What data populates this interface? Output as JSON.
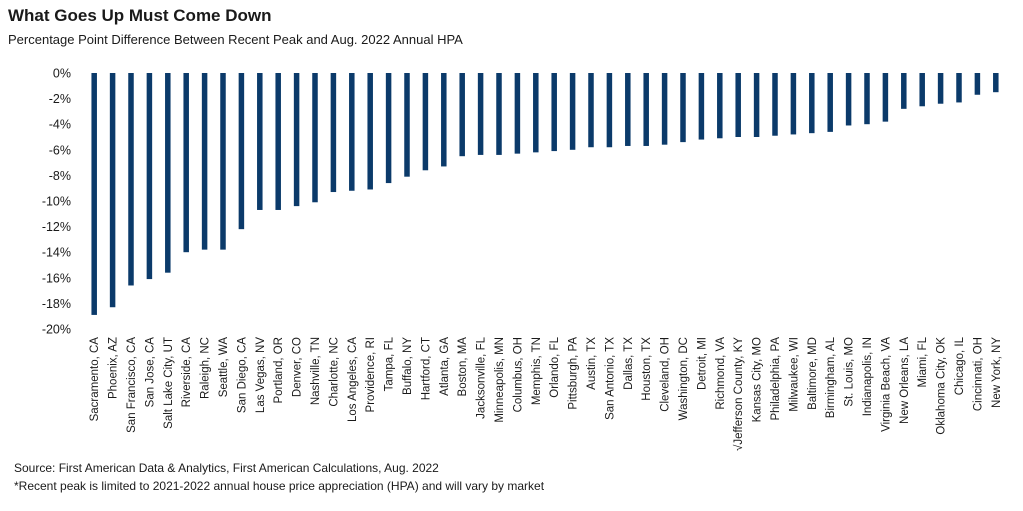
{
  "header": {
    "title": "What Goes Up Must Come Down",
    "subtitle": "Percentage Point Difference Between Recent Peak and Aug. 2022 Annual HPA"
  },
  "footer": {
    "source": "Source: First American Data & Analytics, First American Calculations, Aug. 2022",
    "note": "*Recent peak is limited to 2021-2022 annual house price appreciation (HPA) and will vary by market"
  },
  "colors": {
    "bar": "#0b3a6a",
    "axis_text": "#1a1a1a"
  },
  "chart_data": {
    "type": "bar",
    "title": "What Goes Up Must Come Down",
    "subtitle": "Percentage Point Difference Between Recent Peak and Aug. 2022 Annual HPA",
    "ylim": [
      -20,
      0
    ],
    "yticks": [
      0,
      -2,
      -4,
      -6,
      -8,
      -10,
      -12,
      -14,
      -16,
      -18,
      -20
    ],
    "ytick_labels": [
      "0%",
      "-2%",
      "-4%",
      "-6%",
      "-8%",
      "-10%",
      "-12%",
      "-14%",
      "-16%",
      "-18%",
      "-20%"
    ],
    "grid": false,
    "categories": [
      "Sacramento, CA",
      "Phoenix, AZ",
      "San Francisco, CA",
      "San Jose, CA",
      "Salt Lake City, UT",
      "Riverside, CA",
      "Raleigh, NC",
      "Seattle, WA",
      "San Diego, CA",
      "Las Vegas, NV",
      "Portland, OR",
      "Denver, CO",
      "Nashville, TN",
      "Charlotte, NC",
      "Los Angeles, CA",
      "Providence, RI",
      "Tampa, FL",
      "Buffalo, NY",
      "Hartford, CT",
      "Atlanta, GA",
      "Boston, MA",
      "Jacksonville, FL",
      "Minneapolis, MN",
      "Columbus, OH",
      "Memphis, TN",
      "Orlando, FL",
      "Pittsburgh, PA",
      "Austin, TX",
      "San Antonio, TX",
      "Dallas, TX",
      "Houston, TX",
      "Cleveland, OH",
      "Washington, DC",
      "Detroit, MI",
      "Richmond, VA",
      "√Jefferson County, KY",
      "Kansas City, MO",
      "Philadelphia, PA",
      "Milwaukee, WI",
      "Baltimore, MD",
      "Birmingham, AL",
      "St. Louis, MO",
      "Indianapolis, IN",
      "Virginia Beach, VA",
      "New Orleans, LA",
      "Miami, FL",
      "Oklahoma City, OK",
      "Chicago, IL",
      "Cincinnati, OH",
      "New York, NY"
    ],
    "values": [
      -18.9,
      -18.3,
      -16.6,
      -16.1,
      -15.6,
      -14.0,
      -13.8,
      -13.8,
      -12.2,
      -10.7,
      -10.7,
      -10.4,
      -10.1,
      -9.3,
      -9.2,
      -9.1,
      -8.6,
      -8.1,
      -7.6,
      -7.3,
      -6.5,
      -6.4,
      -6.4,
      -6.3,
      -6.2,
      -6.1,
      -6.0,
      -5.8,
      -5.8,
      -5.7,
      -5.7,
      -5.6,
      -5.4,
      -5.2,
      -5.1,
      -5.0,
      -5.0,
      -4.9,
      -4.8,
      -4.7,
      -4.6,
      -4.1,
      -4.0,
      -3.8,
      -2.8,
      -2.6,
      -2.4,
      -2.3,
      -1.7,
      -1.5
    ]
  }
}
